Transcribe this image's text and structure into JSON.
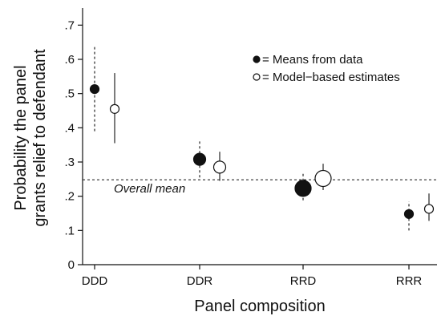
{
  "chart_data": {
    "type": "scatter",
    "xlabel": "Panel composition",
    "ylabel_lines": [
      "Probability the panel",
      "grants relief to defendant"
    ],
    "categories": [
      "DDD",
      "DDR",
      "RRD",
      "RRR"
    ],
    "yticks": [
      "0",
      ".1",
      ".2",
      ".3",
      ".4",
      ".5",
      ".6",
      ".7"
    ],
    "ylim": [
      0,
      0.75
    ],
    "series": [
      {
        "name": "= Means from data",
        "marker": "filled",
        "line_style": "dashed",
        "points": [
          {
            "category": "DDD",
            "y": 0.513,
            "lo": 0.39,
            "hi": 0.64,
            "size": "small"
          },
          {
            "category": "DDR",
            "y": 0.308,
            "lo": 0.255,
            "hi": 0.36,
            "size": "medium"
          },
          {
            "category": "RRD",
            "y": 0.223,
            "lo": 0.188,
            "hi": 0.268,
            "size": "large"
          },
          {
            "category": "RRR",
            "y": 0.148,
            "lo": 0.1,
            "hi": 0.185,
            "size": "small"
          }
        ]
      },
      {
        "name": "= Model−based estimates",
        "marker": "open",
        "line_style": "solid",
        "points": [
          {
            "category": "DDD",
            "y": 0.455,
            "lo": 0.355,
            "hi": 0.56,
            "size": "small"
          },
          {
            "category": "DDR",
            "y": 0.285,
            "lo": 0.245,
            "hi": 0.33,
            "size": "medium"
          },
          {
            "category": "RRD",
            "y": 0.252,
            "lo": 0.218,
            "hi": 0.295,
            "size": "large"
          },
          {
            "category": "RRR",
            "y": 0.163,
            "lo": 0.128,
            "hi": 0.208,
            "size": "small"
          }
        ]
      }
    ],
    "reference_line": {
      "y": 0.248,
      "label": "Overall mean",
      "style": "dashed"
    },
    "legend": {
      "position": "top-right"
    },
    "grid": false
  }
}
